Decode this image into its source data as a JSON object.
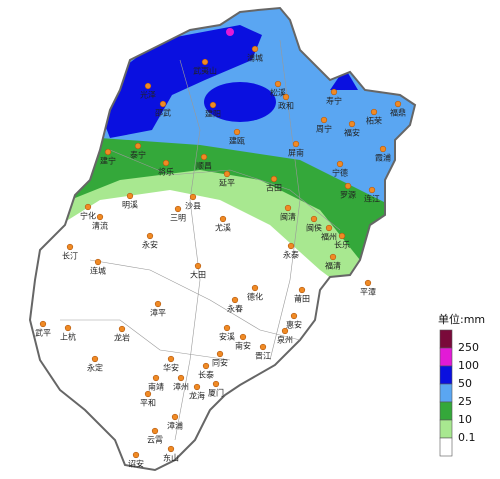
{
  "cities": [
    "光泽",
    "邵武",
    "武夷山",
    "浦城",
    "松溪",
    "政和",
    "建阳",
    "寿宁",
    "福鼎",
    "柘荣",
    "周宁",
    "福安",
    "霞浦",
    "建瓯",
    "屏南",
    "宁德",
    "泰宁",
    "建宁",
    "将乐",
    "顺昌",
    "延平",
    "古田",
    "罗源",
    "连江",
    "闽清",
    "闽侯",
    "福州",
    "长乐",
    "永泰",
    "福清",
    "平潭",
    "宁化",
    "明溪",
    "清流",
    "沙县",
    "三明",
    "尤溪",
    "长汀",
    "永安",
    "连城",
    "大田",
    "德化",
    "莆田",
    "永春",
    "漳平",
    "武平",
    "上杭",
    "龙岩",
    "安溪",
    "南安",
    "泉州",
    "晋江",
    "惠安",
    "永定",
    "华安",
    "长泰",
    "同安",
    "厦门",
    "漳州",
    "南靖",
    "龙海",
    "平和",
    "漳浦",
    "云霄",
    "诏安",
    "东山"
  ],
  "legend": {
    "unit": "单位:mm",
    "labels": [
      250,
      100,
      50,
      25,
      10,
      0.1
    ],
    "colors": [
      "#7a0a3a",
      "#e21ad6",
      "#0a10e0",
      "#5aa6f2",
      "#34a83a",
      "#a8e890",
      "#ffffff"
    ]
  }
}
